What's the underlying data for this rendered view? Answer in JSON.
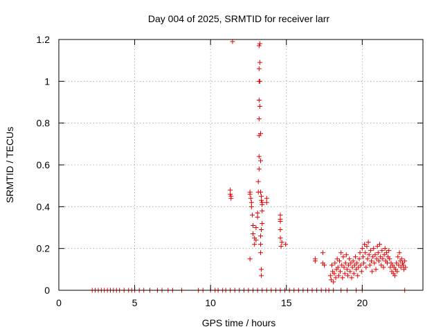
{
  "chart_data": {
    "type": "scatter",
    "title": "Day 004 of 2025, SRMTID for receiver larr",
    "xlabel": "GPS time / hours",
    "ylabel": "SRMTID / TECUs",
    "xlim": [
      0,
      24
    ],
    "ylim": [
      0,
      1.2
    ],
    "xticks": [
      0,
      5,
      10,
      15,
      20
    ],
    "yticks": [
      0,
      0.2,
      0.4,
      0.6,
      0.8,
      1,
      1.2
    ],
    "xtick_labels": [
      "0",
      "5",
      "10",
      "15",
      "20"
    ],
    "ytick_labels": [
      "0",
      "0.2",
      "0.4",
      "0.6",
      "0.8",
      "1",
      "1.2"
    ],
    "grid": true,
    "marker": "+",
    "series": [
      {
        "name": "SRMTID",
        "color": "#e00000",
        "points": [
          [
            2.2,
            0
          ],
          [
            2.4,
            0
          ],
          [
            2.6,
            0
          ],
          [
            2.8,
            0
          ],
          [
            3.0,
            0
          ],
          [
            3.2,
            0
          ],
          [
            3.4,
            0
          ],
          [
            3.6,
            0
          ],
          [
            3.8,
            0
          ],
          [
            4.0,
            0
          ],
          [
            4.3,
            0
          ],
          [
            4.6,
            0
          ],
          [
            4.8,
            0
          ],
          [
            5.0,
            0
          ],
          [
            5.3,
            0
          ],
          [
            5.6,
            0
          ],
          [
            6.0,
            0
          ],
          [
            6.5,
            0
          ],
          [
            6.8,
            0
          ],
          [
            7.2,
            0
          ],
          [
            7.5,
            0
          ],
          [
            8.1,
            0
          ],
          [
            9.2,
            0
          ],
          [
            9.5,
            0
          ],
          [
            10.0,
            0
          ],
          [
            10.3,
            0
          ],
          [
            10.5,
            0
          ],
          [
            10.8,
            0
          ],
          [
            11.0,
            0
          ],
          [
            11.3,
            0
          ],
          [
            11.6,
            0
          ],
          [
            11.9,
            0
          ],
          [
            12.2,
            0
          ],
          [
            12.5,
            0
          ],
          [
            12.8,
            0
          ],
          [
            13.1,
            0
          ],
          [
            13.4,
            0
          ],
          [
            13.7,
            0
          ],
          [
            14.0,
            0
          ],
          [
            14.3,
            0
          ],
          [
            14.6,
            0
          ],
          [
            14.9,
            0
          ],
          [
            15.2,
            0
          ],
          [
            15.5,
            0
          ],
          [
            15.8,
            0
          ],
          [
            16.1,
            0
          ],
          [
            16.4,
            0
          ],
          [
            16.7,
            0
          ],
          [
            17.0,
            0
          ],
          [
            17.3,
            0
          ],
          [
            17.6,
            0
          ],
          [
            17.8,
            0
          ],
          [
            18.1,
            0
          ],
          [
            18.6,
            0
          ],
          [
            19.0,
            0
          ],
          [
            19.6,
            0
          ],
          [
            20.0,
            0
          ],
          [
            22.8,
            0
          ],
          [
            11.3,
            0.48
          ],
          [
            11.3,
            0.46
          ],
          [
            11.35,
            0.44
          ],
          [
            11.35,
            0.45
          ],
          [
            11.45,
            1.19
          ],
          [
            12.6,
            0.47
          ],
          [
            12.6,
            0.46
          ],
          [
            12.65,
            0.44
          ],
          [
            12.7,
            0.42
          ],
          [
            12.7,
            0.4
          ],
          [
            12.75,
            0.36
          ],
          [
            12.8,
            0.31
          ],
          [
            12.8,
            0.27
          ],
          [
            12.6,
            0.15
          ],
          [
            12.9,
            0.22
          ],
          [
            12.9,
            0.25
          ],
          [
            13.0,
            0.24
          ],
          [
            13.0,
            0.3
          ],
          [
            13.1,
            0.35
          ],
          [
            13.1,
            0.37
          ],
          [
            13.15,
            0.47
          ],
          [
            13.15,
            0.52
          ],
          [
            13.2,
            0.58
          ],
          [
            13.2,
            0.64
          ],
          [
            13.2,
            0.74
          ],
          [
            13.2,
            0.82
          ],
          [
            13.2,
            0.91
          ],
          [
            13.25,
            0.88
          ],
          [
            13.2,
            1.0
          ],
          [
            13.25,
            1.0
          ],
          [
            13.2,
            1.06
          ],
          [
            13.25,
            1.09
          ],
          [
            13.2,
            1.17
          ],
          [
            13.25,
            1.18
          ],
          [
            13.3,
            0.75
          ],
          [
            13.3,
            0.62
          ],
          [
            13.3,
            0.47
          ],
          [
            13.35,
            0.45
          ],
          [
            13.35,
            0.43
          ],
          [
            13.4,
            0.41
          ],
          [
            13.4,
            0.38
          ],
          [
            13.4,
            0.32
          ],
          [
            13.35,
            0.29
          ],
          [
            13.3,
            0.26
          ],
          [
            13.3,
            0.22
          ],
          [
            13.3,
            0.18
          ],
          [
            13.35,
            0.1
          ],
          [
            13.35,
            0.07
          ],
          [
            13.4,
            0.42
          ],
          [
            13.7,
            0.44
          ],
          [
            13.7,
            0.42
          ],
          [
            14.6,
            0.36
          ],
          [
            14.6,
            0.34
          ],
          [
            14.6,
            0.33
          ],
          [
            14.6,
            0.29
          ],
          [
            14.6,
            0.25
          ],
          [
            14.65,
            0.21
          ],
          [
            14.7,
            0.23
          ],
          [
            14.95,
            0.22
          ],
          [
            16.9,
            0.15
          ],
          [
            16.9,
            0.14
          ],
          [
            17.4,
            0.18
          ],
          [
            17.4,
            0.13
          ],
          [
            17.5,
            0.12
          ],
          [
            17.9,
            0.07
          ],
          [
            17.95,
            0.05
          ],
          [
            18.0,
            0.12
          ],
          [
            18.05,
            0.09
          ],
          [
            18.1,
            0.04
          ],
          [
            18.15,
            0.08
          ],
          [
            18.2,
            0.13
          ],
          [
            18.25,
            0.06
          ],
          [
            18.3,
            0.1
          ],
          [
            18.35,
            0.15
          ],
          [
            18.4,
            0.11
          ],
          [
            18.45,
            0.07
          ],
          [
            18.5,
            0.14
          ],
          [
            18.55,
            0.09
          ],
          [
            18.6,
            0.18
          ],
          [
            18.65,
            0.12
          ],
          [
            18.7,
            0.06
          ],
          [
            18.75,
            0.16
          ],
          [
            18.8,
            0.11
          ],
          [
            18.85,
            0.08
          ],
          [
            18.9,
            0.13
          ],
          [
            18.95,
            0.17
          ],
          [
            19.0,
            0.1
          ],
          [
            19.05,
            0.07
          ],
          [
            19.1,
            0.12
          ],
          [
            19.15,
            0.15
          ],
          [
            19.2,
            0.09
          ],
          [
            19.25,
            0.13
          ],
          [
            19.3,
            0.06
          ],
          [
            19.35,
            0.11
          ],
          [
            19.4,
            0.14
          ],
          [
            19.45,
            0.08
          ],
          [
            19.5,
            0.12
          ],
          [
            19.55,
            0.16
          ],
          [
            19.6,
            0.1
          ],
          [
            19.65,
            0.13
          ],
          [
            19.7,
            0.07
          ],
          [
            19.75,
            0.11
          ],
          [
            19.8,
            0.15
          ],
          [
            19.85,
            0.18
          ],
          [
            19.9,
            0.12
          ],
          [
            19.95,
            0.09
          ],
          [
            20.0,
            0.2
          ],
          [
            20.05,
            0.16
          ],
          [
            20.1,
            0.13
          ],
          [
            20.15,
            0.22
          ],
          [
            20.2,
            0.18
          ],
          [
            20.25,
            0.11
          ],
          [
            20.3,
            0.21
          ],
          [
            20.35,
            0.15
          ],
          [
            20.4,
            0.23
          ],
          [
            20.45,
            0.17
          ],
          [
            20.5,
            0.12
          ],
          [
            20.55,
            0.19
          ],
          [
            20.6,
            0.14
          ],
          [
            20.65,
            0.09
          ],
          [
            20.7,
            0.16
          ],
          [
            20.75,
            0.2
          ],
          [
            20.8,
            0.13
          ],
          [
            20.85,
            0.17
          ],
          [
            20.9,
            0.1
          ],
          [
            20.95,
            0.15
          ],
          [
            21.0,
            0.21
          ],
          [
            21.05,
            0.18
          ],
          [
            21.1,
            0.14
          ],
          [
            21.15,
            0.22
          ],
          [
            21.2,
            0.16
          ],
          [
            21.25,
            0.12
          ],
          [
            21.3,
            0.19
          ],
          [
            21.35,
            0.15
          ],
          [
            21.4,
            0.11
          ],
          [
            21.45,
            0.17
          ],
          [
            21.5,
            0.2
          ],
          [
            21.55,
            0.14
          ],
          [
            21.6,
            0.18
          ],
          [
            21.65,
            0.13
          ],
          [
            21.7,
            0.16
          ],
          [
            21.75,
            0.19
          ],
          [
            21.8,
            0.15
          ],
          [
            21.85,
            0.11
          ],
          [
            21.9,
            0.13
          ],
          [
            21.95,
            0.09
          ],
          [
            22.0,
            0.12
          ],
          [
            22.05,
            0.08
          ],
          [
            22.1,
            0.11
          ],
          [
            22.15,
            0.07
          ],
          [
            22.2,
            0.1
          ],
          [
            22.25,
            0.13
          ],
          [
            22.3,
            0.09
          ],
          [
            22.35,
            0.16
          ],
          [
            22.4,
            0.12
          ],
          [
            22.45,
            0.18
          ],
          [
            22.5,
            0.14
          ],
          [
            22.55,
            0.11
          ],
          [
            22.6,
            0.15
          ],
          [
            22.65,
            0.13
          ],
          [
            22.7,
            0.12
          ],
          [
            22.75,
            0.1
          ],
          [
            22.8,
            0.14
          ],
          [
            22.85,
            0.11
          ]
        ]
      }
    ]
  }
}
